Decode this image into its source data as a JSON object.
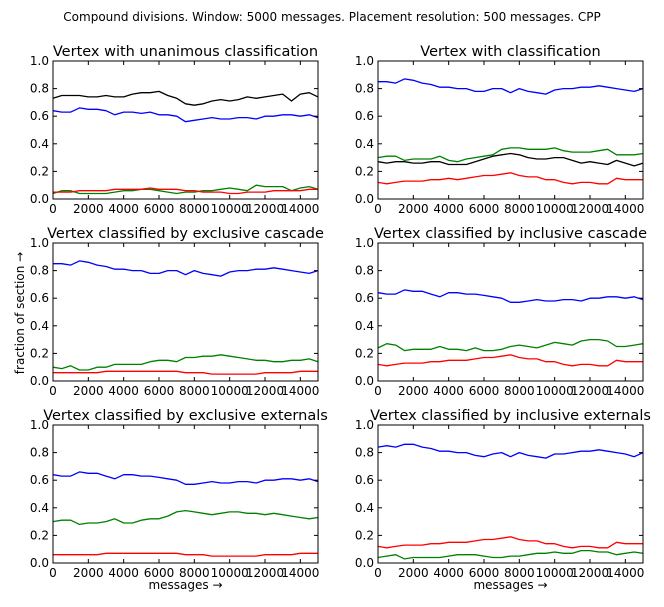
{
  "suptitle": "Compound divisions. Window: 5000 messages. Placement resolution: 500 messages. CPP",
  "colors": {
    "blue": "#0000ff",
    "green": "#008000",
    "red": "#ff0000",
    "black": "#000000"
  },
  "chart_data": [
    {
      "type": "line",
      "title": "Vertex with unanimous classification",
      "xlabel": "",
      "ylabel": "",
      "xlim": [
        0,
        15000
      ],
      "ylim": [
        0,
        1.0
      ],
      "xticks": [
        "0",
        "2000",
        "4000",
        "6000",
        "8000",
        "10000",
        "12000",
        "14000"
      ],
      "yticks": [
        "0.0",
        "0.2",
        "0.4",
        "0.6",
        "0.8",
        "1.0"
      ],
      "x": [
        0,
        500,
        1000,
        1500,
        2000,
        2500,
        3000,
        3500,
        4000,
        4500,
        5000,
        5500,
        6000,
        6500,
        7000,
        7500,
        8000,
        8500,
        9000,
        9500,
        10000,
        10500,
        11000,
        11500,
        12000,
        12500,
        13000,
        13500,
        14000,
        14500,
        15000
      ],
      "series": [
        {
          "color": "black",
          "values": [
            0.73,
            0.75,
            0.75,
            0.75,
            0.74,
            0.74,
            0.75,
            0.74,
            0.74,
            0.76,
            0.77,
            0.77,
            0.78,
            0.75,
            0.73,
            0.69,
            0.68,
            0.69,
            0.71,
            0.72,
            0.71,
            0.72,
            0.74,
            0.73,
            0.74,
            0.75,
            0.76,
            0.71,
            0.76,
            0.77,
            0.74
          ]
        },
        {
          "color": "blue",
          "values": [
            0.64,
            0.63,
            0.63,
            0.66,
            0.65,
            0.65,
            0.64,
            0.61,
            0.63,
            0.63,
            0.62,
            0.63,
            0.61,
            0.61,
            0.6,
            0.56,
            0.57,
            0.58,
            0.59,
            0.58,
            0.58,
            0.59,
            0.59,
            0.58,
            0.6,
            0.6,
            0.61,
            0.61,
            0.6,
            0.61,
            0.59
          ]
        },
        {
          "color": "green",
          "values": [
            0.04,
            0.06,
            0.06,
            0.04,
            0.04,
            0.04,
            0.04,
            0.05,
            0.06,
            0.06,
            0.07,
            0.07,
            0.06,
            0.05,
            0.04,
            0.05,
            0.05,
            0.06,
            0.06,
            0.07,
            0.08,
            0.07,
            0.06,
            0.1,
            0.09,
            0.09,
            0.09,
            0.06,
            0.08,
            0.09,
            0.07
          ]
        },
        {
          "color": "red",
          "values": [
            0.05,
            0.05,
            0.05,
            0.06,
            0.06,
            0.06,
            0.06,
            0.07,
            0.07,
            0.07,
            0.07,
            0.08,
            0.07,
            0.07,
            0.07,
            0.06,
            0.06,
            0.05,
            0.05,
            0.05,
            0.04,
            0.04,
            0.05,
            0.05,
            0.05,
            0.06,
            0.06,
            0.06,
            0.06,
            0.07,
            0.07
          ]
        }
      ]
    },
    {
      "type": "line",
      "title": "Vertex with classification",
      "xlabel": "",
      "ylabel": "",
      "xlim": [
        0,
        15000
      ],
      "ylim": [
        0,
        1.0
      ],
      "xticks": [
        "0",
        "2000",
        "4000",
        "6000",
        "8000",
        "10000",
        "12000",
        "14000"
      ],
      "yticks": [
        "0.0",
        "0.2",
        "0.4",
        "0.6",
        "0.8",
        "1.0"
      ],
      "x": [
        0,
        500,
        1000,
        1500,
        2000,
        2500,
        3000,
        3500,
        4000,
        4500,
        5000,
        5500,
        6000,
        6500,
        7000,
        7500,
        8000,
        8500,
        9000,
        9500,
        10000,
        10500,
        11000,
        11500,
        12000,
        12500,
        13000,
        13500,
        14000,
        14500,
        15000
      ],
      "series": [
        {
          "color": "blue",
          "values": [
            0.85,
            0.85,
            0.84,
            0.87,
            0.86,
            0.84,
            0.83,
            0.81,
            0.81,
            0.8,
            0.8,
            0.78,
            0.78,
            0.8,
            0.8,
            0.77,
            0.8,
            0.78,
            0.77,
            0.76,
            0.79,
            0.8,
            0.8,
            0.81,
            0.81,
            0.82,
            0.81,
            0.8,
            0.79,
            0.78,
            0.8
          ]
        },
        {
          "color": "green",
          "values": [
            0.3,
            0.31,
            0.31,
            0.28,
            0.29,
            0.29,
            0.29,
            0.31,
            0.28,
            0.27,
            0.29,
            0.3,
            0.31,
            0.32,
            0.36,
            0.37,
            0.37,
            0.36,
            0.36,
            0.36,
            0.37,
            0.35,
            0.34,
            0.34,
            0.34,
            0.35,
            0.36,
            0.32,
            0.32,
            0.32,
            0.33
          ]
        },
        {
          "color": "black",
          "values": [
            0.27,
            0.26,
            0.27,
            0.27,
            0.26,
            0.26,
            0.27,
            0.27,
            0.25,
            0.25,
            0.25,
            0.27,
            0.29,
            0.31,
            0.32,
            0.33,
            0.32,
            0.3,
            0.29,
            0.29,
            0.3,
            0.3,
            0.28,
            0.26,
            0.27,
            0.26,
            0.25,
            0.28,
            0.26,
            0.24,
            0.26
          ]
        },
        {
          "color": "red",
          "values": [
            0.12,
            0.11,
            0.12,
            0.13,
            0.13,
            0.13,
            0.14,
            0.14,
            0.15,
            0.14,
            0.15,
            0.16,
            0.17,
            0.17,
            0.18,
            0.19,
            0.17,
            0.16,
            0.16,
            0.14,
            0.14,
            0.12,
            0.11,
            0.12,
            0.12,
            0.11,
            0.11,
            0.15,
            0.14,
            0.14,
            0.14
          ]
        }
      ]
    },
    {
      "type": "line",
      "title": "Vertex classified by exclusive cascade",
      "xlabel": "",
      "ylabel": "",
      "xlim": [
        0,
        15000
      ],
      "ylim": [
        0,
        1.0
      ],
      "xticks": [
        "0",
        "2000",
        "4000",
        "6000",
        "8000",
        "10000",
        "12000",
        "14000"
      ],
      "yticks": [
        "0.0",
        "0.2",
        "0.4",
        "0.6",
        "0.8",
        "1.0"
      ],
      "x": [
        0,
        500,
        1000,
        1500,
        2000,
        2500,
        3000,
        3500,
        4000,
        4500,
        5000,
        5500,
        6000,
        6500,
        7000,
        7500,
        8000,
        8500,
        9000,
        9500,
        10000,
        10500,
        11000,
        11500,
        12000,
        12500,
        13000,
        13500,
        14000,
        14500,
        15000
      ],
      "series": [
        {
          "color": "blue",
          "values": [
            0.85,
            0.85,
            0.84,
            0.87,
            0.86,
            0.84,
            0.83,
            0.81,
            0.81,
            0.8,
            0.8,
            0.78,
            0.78,
            0.8,
            0.8,
            0.77,
            0.8,
            0.78,
            0.77,
            0.76,
            0.79,
            0.8,
            0.8,
            0.81,
            0.81,
            0.82,
            0.81,
            0.8,
            0.79,
            0.78,
            0.8
          ]
        },
        {
          "color": "green",
          "values": [
            0.1,
            0.09,
            0.11,
            0.08,
            0.08,
            0.1,
            0.1,
            0.12,
            0.12,
            0.12,
            0.12,
            0.14,
            0.15,
            0.15,
            0.14,
            0.17,
            0.17,
            0.18,
            0.18,
            0.19,
            0.18,
            0.17,
            0.16,
            0.15,
            0.15,
            0.14,
            0.14,
            0.15,
            0.15,
            0.16,
            0.14
          ]
        },
        {
          "color": "red",
          "values": [
            0.06,
            0.06,
            0.06,
            0.06,
            0.06,
            0.06,
            0.07,
            0.07,
            0.07,
            0.07,
            0.07,
            0.07,
            0.07,
            0.07,
            0.07,
            0.06,
            0.06,
            0.06,
            0.05,
            0.05,
            0.05,
            0.05,
            0.05,
            0.05,
            0.06,
            0.06,
            0.06,
            0.06,
            0.07,
            0.07,
            0.07
          ]
        }
      ]
    },
    {
      "type": "line",
      "title": "Vertex classified by inclusive cascade",
      "xlabel": "",
      "ylabel": "",
      "xlim": [
        0,
        15000
      ],
      "ylim": [
        0,
        1.0
      ],
      "xticks": [
        "0",
        "2000",
        "4000",
        "6000",
        "8000",
        "10000",
        "12000",
        "14000"
      ],
      "yticks": [
        "0.0",
        "0.2",
        "0.4",
        "0.6",
        "0.8",
        "1.0"
      ],
      "x": [
        0,
        500,
        1000,
        1500,
        2000,
        2500,
        3000,
        3500,
        4000,
        4500,
        5000,
        5500,
        6000,
        6500,
        7000,
        7500,
        8000,
        8500,
        9000,
        9500,
        10000,
        10500,
        11000,
        11500,
        12000,
        12500,
        13000,
        13500,
        14000,
        14500,
        15000
      ],
      "series": [
        {
          "color": "blue",
          "values": [
            0.64,
            0.63,
            0.63,
            0.66,
            0.65,
            0.65,
            0.63,
            0.61,
            0.64,
            0.64,
            0.63,
            0.63,
            0.62,
            0.61,
            0.6,
            0.57,
            0.57,
            0.58,
            0.59,
            0.58,
            0.58,
            0.59,
            0.59,
            0.58,
            0.6,
            0.6,
            0.61,
            0.61,
            0.6,
            0.61,
            0.59
          ]
        },
        {
          "color": "green",
          "values": [
            0.24,
            0.27,
            0.26,
            0.22,
            0.23,
            0.23,
            0.23,
            0.25,
            0.23,
            0.23,
            0.22,
            0.24,
            0.22,
            0.22,
            0.23,
            0.25,
            0.26,
            0.25,
            0.24,
            0.26,
            0.28,
            0.27,
            0.26,
            0.29,
            0.3,
            0.3,
            0.29,
            0.25,
            0.25,
            0.26,
            0.27
          ]
        },
        {
          "color": "red",
          "values": [
            0.12,
            0.11,
            0.12,
            0.13,
            0.13,
            0.13,
            0.14,
            0.14,
            0.15,
            0.15,
            0.15,
            0.16,
            0.17,
            0.17,
            0.18,
            0.19,
            0.17,
            0.16,
            0.16,
            0.14,
            0.14,
            0.12,
            0.11,
            0.12,
            0.12,
            0.11,
            0.11,
            0.15,
            0.14,
            0.14,
            0.14
          ]
        }
      ]
    },
    {
      "type": "line",
      "title": "Vertex classified by exclusive externals",
      "xlabel": "messages →",
      "ylabel": "",
      "xlim": [
        0,
        15000
      ],
      "ylim": [
        0,
        1.0
      ],
      "xticks": [
        "0",
        "2000",
        "4000",
        "6000",
        "8000",
        "10000",
        "12000",
        "14000"
      ],
      "yticks": [
        "0.0",
        "0.2",
        "0.4",
        "0.6",
        "0.8",
        "1.0"
      ],
      "x": [
        0,
        500,
        1000,
        1500,
        2000,
        2500,
        3000,
        3500,
        4000,
        4500,
        5000,
        5500,
        6000,
        6500,
        7000,
        7500,
        8000,
        8500,
        9000,
        9500,
        10000,
        10500,
        11000,
        11500,
        12000,
        12500,
        13000,
        13500,
        14000,
        14500,
        15000
      ],
      "series": [
        {
          "color": "blue",
          "values": [
            0.64,
            0.63,
            0.63,
            0.66,
            0.65,
            0.65,
            0.63,
            0.61,
            0.64,
            0.64,
            0.63,
            0.63,
            0.62,
            0.61,
            0.6,
            0.57,
            0.57,
            0.58,
            0.59,
            0.58,
            0.58,
            0.59,
            0.59,
            0.58,
            0.6,
            0.6,
            0.61,
            0.61,
            0.6,
            0.61,
            0.59
          ]
        },
        {
          "color": "green",
          "values": [
            0.3,
            0.31,
            0.31,
            0.28,
            0.29,
            0.29,
            0.3,
            0.32,
            0.29,
            0.29,
            0.31,
            0.32,
            0.32,
            0.34,
            0.37,
            0.38,
            0.37,
            0.36,
            0.35,
            0.36,
            0.37,
            0.37,
            0.36,
            0.36,
            0.35,
            0.36,
            0.35,
            0.34,
            0.33,
            0.32,
            0.33
          ]
        },
        {
          "color": "red",
          "values": [
            0.06,
            0.06,
            0.06,
            0.06,
            0.06,
            0.06,
            0.07,
            0.07,
            0.07,
            0.07,
            0.07,
            0.07,
            0.07,
            0.07,
            0.07,
            0.06,
            0.06,
            0.06,
            0.05,
            0.05,
            0.05,
            0.05,
            0.05,
            0.05,
            0.06,
            0.06,
            0.06,
            0.06,
            0.07,
            0.07,
            0.07
          ]
        }
      ]
    },
    {
      "type": "line",
      "title": "Vertex classified by inclusive externals",
      "xlabel": "messages →",
      "ylabel": "",
      "xlim": [
        0,
        15000
      ],
      "ylim": [
        0,
        1.0
      ],
      "xticks": [
        "0",
        "2000",
        "4000",
        "6000",
        "8000",
        "10000",
        "12000",
        "14000"
      ],
      "yticks": [
        "0.0",
        "0.2",
        "0.4",
        "0.6",
        "0.8",
        "1.0"
      ],
      "x": [
        0,
        500,
        1000,
        1500,
        2000,
        2500,
        3000,
        3500,
        4000,
        4500,
        5000,
        5500,
        6000,
        6500,
        7000,
        7500,
        8000,
        8500,
        9000,
        9500,
        10000,
        10500,
        11000,
        11500,
        12000,
        12500,
        13000,
        13500,
        14000,
        14500,
        15000
      ],
      "series": [
        {
          "color": "blue",
          "values": [
            0.84,
            0.85,
            0.84,
            0.86,
            0.86,
            0.84,
            0.83,
            0.81,
            0.81,
            0.8,
            0.8,
            0.78,
            0.77,
            0.79,
            0.8,
            0.77,
            0.8,
            0.78,
            0.77,
            0.76,
            0.79,
            0.79,
            0.8,
            0.81,
            0.81,
            0.82,
            0.81,
            0.8,
            0.79,
            0.77,
            0.8
          ]
        },
        {
          "color": "red",
          "values": [
            0.12,
            0.11,
            0.12,
            0.13,
            0.13,
            0.13,
            0.14,
            0.14,
            0.15,
            0.15,
            0.15,
            0.16,
            0.17,
            0.17,
            0.18,
            0.19,
            0.17,
            0.16,
            0.16,
            0.14,
            0.14,
            0.12,
            0.11,
            0.12,
            0.12,
            0.11,
            0.11,
            0.15,
            0.14,
            0.14,
            0.14
          ]
        },
        {
          "color": "green",
          "values": [
            0.04,
            0.05,
            0.06,
            0.03,
            0.04,
            0.04,
            0.04,
            0.04,
            0.05,
            0.06,
            0.06,
            0.06,
            0.05,
            0.04,
            0.04,
            0.05,
            0.05,
            0.06,
            0.07,
            0.07,
            0.08,
            0.07,
            0.07,
            0.09,
            0.09,
            0.08,
            0.08,
            0.06,
            0.07,
            0.08,
            0.07
          ]
        }
      ]
    }
  ],
  "shared_ylabel": "fraction of section →"
}
